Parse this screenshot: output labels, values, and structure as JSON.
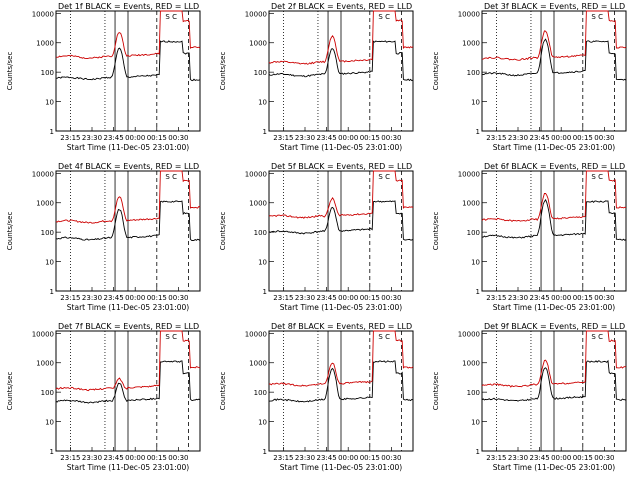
{
  "common": {
    "ylabel": "Counts/sec",
    "xlabel": "Start Time (11-Dec-05 23:01:00)",
    "y_ticks": [
      "1",
      "10",
      "100",
      "1000",
      "10000"
    ],
    "x_ticks": [
      "23:15",
      "23:30",
      "23:45",
      "00:00",
      "00:15",
      "00:30"
    ],
    "flag_text": "S C",
    "colors": {
      "events": "#000000",
      "lld": "#cc0000"
    }
  },
  "chart_data": [
    {
      "type": "line",
      "title": "Det 1f BLACK = Events, RED = LLD",
      "yscale": "log",
      "ylim": [
        1,
        12000
      ],
      "series": [
        {
          "name": "Events",
          "color": "#000000",
          "base": 62,
          "peak": 640,
          "high": 1100
        },
        {
          "name": "LLD",
          "color": "#cc0000",
          "base": 330,
          "peak": 2300,
          "high": 14000
        }
      ]
    },
    {
      "type": "line",
      "title": "Det 2f BLACK = Events, RED = LLD",
      "yscale": "log",
      "ylim": [
        1,
        12000
      ],
      "series": [
        {
          "name": "Events",
          "color": "#000000",
          "base": 80,
          "peak": 650,
          "high": 1100
        },
        {
          "name": "LLD",
          "color": "#cc0000",
          "base": 210,
          "peak": 1700,
          "high": 14000
        }
      ]
    },
    {
      "type": "line",
      "title": "Det 3f BLACK = Events, RED = LLD",
      "yscale": "log",
      "ylim": [
        1,
        12000
      ],
      "series": [
        {
          "name": "Events",
          "color": "#000000",
          "base": 85,
          "peak": 1300,
          "high": 1100
        },
        {
          "name": "LLD",
          "color": "#cc0000",
          "base": 290,
          "peak": 2600,
          "high": 14000
        }
      ]
    },
    {
      "type": "line",
      "title": "Det 4f BLACK = Events, RED = LLD",
      "yscale": "log",
      "ylim": [
        1,
        12000
      ],
      "series": [
        {
          "name": "Events",
          "color": "#000000",
          "base": 60,
          "peak": 600,
          "high": 1100
        },
        {
          "name": "LLD",
          "color": "#cc0000",
          "base": 230,
          "peak": 1600,
          "high": 14000
        }
      ]
    },
    {
      "type": "line",
      "title": "Det 5f BLACK = Events, RED = LLD",
      "yscale": "log",
      "ylim": [
        1,
        12000
      ],
      "series": [
        {
          "name": "Events",
          "color": "#000000",
          "base": 100,
          "peak": 700,
          "high": 1100
        },
        {
          "name": "LLD",
          "color": "#cc0000",
          "base": 340,
          "peak": 1400,
          "high": 14000
        }
      ]
    },
    {
      "type": "line",
      "title": "Det 6f BLACK = Events, RED = LLD",
      "yscale": "log",
      "ylim": [
        1,
        12000
      ],
      "series": [
        {
          "name": "Events",
          "color": "#000000",
          "base": 70,
          "peak": 1200,
          "high": 1100
        },
        {
          "name": "LLD",
          "color": "#cc0000",
          "base": 260,
          "peak": 2100,
          "high": 14000
        }
      ]
    },
    {
      "type": "line",
      "title": "Det 7f BLACK = Events, RED = LLD",
      "yscale": "log",
      "ylim": [
        1,
        12000
      ],
      "series": [
        {
          "name": "Events",
          "color": "#000000",
          "base": 48,
          "peak": 200,
          "high": 1100
        },
        {
          "name": "LLD",
          "color": "#cc0000",
          "base": 130,
          "peak": 290,
          "high": 14000
        }
      ]
    },
    {
      "type": "line",
      "title": "Det 8f BLACK = Events, RED = LLD",
      "yscale": "log",
      "ylim": [
        1,
        12000
      ],
      "series": [
        {
          "name": "Events",
          "color": "#000000",
          "base": 52,
          "peak": 620,
          "high": 1100
        },
        {
          "name": "LLD",
          "color": "#cc0000",
          "base": 180,
          "peak": 1000,
          "high": 14000
        }
      ]
    },
    {
      "type": "line",
      "title": "Det 9f BLACK = Events, RED = LLD",
      "yscale": "log",
      "ylim": [
        1,
        12000
      ],
      "series": [
        {
          "name": "Events",
          "color": "#000000",
          "base": 55,
          "peak": 700,
          "high": 1100
        },
        {
          "name": "LLD",
          "color": "#cc0000",
          "base": 170,
          "peak": 1200,
          "high": 14000
        }
      ]
    }
  ]
}
